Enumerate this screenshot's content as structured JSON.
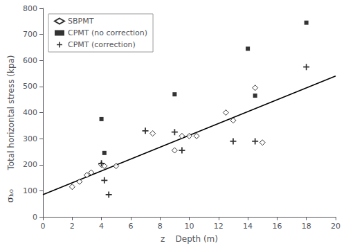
{
  "chart_data": {
    "type": "scatter",
    "xlabel": "z    Depth (m)",
    "ylabel": "Total horizontal stress (kpa)",
    "annotations": [
      "σₕ₀"
    ],
    "xlim": [
      0,
      20
    ],
    "ylim": [
      0,
      800
    ],
    "xticks": [
      0,
      2,
      4,
      6,
      8,
      10,
      12,
      14,
      16,
      18,
      20
    ],
    "yticks": [
      0,
      100,
      200,
      300,
      400,
      500,
      600,
      700,
      800
    ],
    "grid": false,
    "legend": "upper left",
    "series": [
      {
        "type": "line",
        "color": "#000000",
        "x": [
          0,
          20
        ],
        "values": [
          85,
          540
        ]
      },
      {
        "name": "SBPMT",
        "type": "scatter",
        "marker": "open_diamond",
        "color": "#000000",
        "x": [
          2.0,
          2.5,
          3.0,
          3.3,
          4.0,
          4.2,
          5.0,
          7.5,
          9.0,
          9.5,
          10.0,
          10.5,
          12.5,
          13.0,
          14.5,
          15.0
        ],
        "values": [
          115,
          135,
          160,
          170,
          200,
          195,
          195,
          320,
          255,
          310,
          310,
          310,
          400,
          370,
          495,
          285
        ]
      },
      {
        "name": "CPMT (no correction)",
        "type": "scatter",
        "marker": "square",
        "color": "#000000",
        "x": [
          4.0,
          4.2,
          9.0,
          14.0,
          14.5,
          18.0
        ],
        "values": [
          375,
          245,
          470,
          645,
          465,
          745
        ]
      },
      {
        "name": "CPMT (correction)",
        "type": "scatter",
        "marker": "plus",
        "color": "#000000",
        "x": [
          4.0,
          4.2,
          4.5,
          7.0,
          9.0,
          9.5,
          13.0,
          14.5,
          18.0
        ],
        "values": [
          205,
          140,
          85,
          330,
          325,
          255,
          290,
          290,
          575
        ]
      }
    ]
  }
}
